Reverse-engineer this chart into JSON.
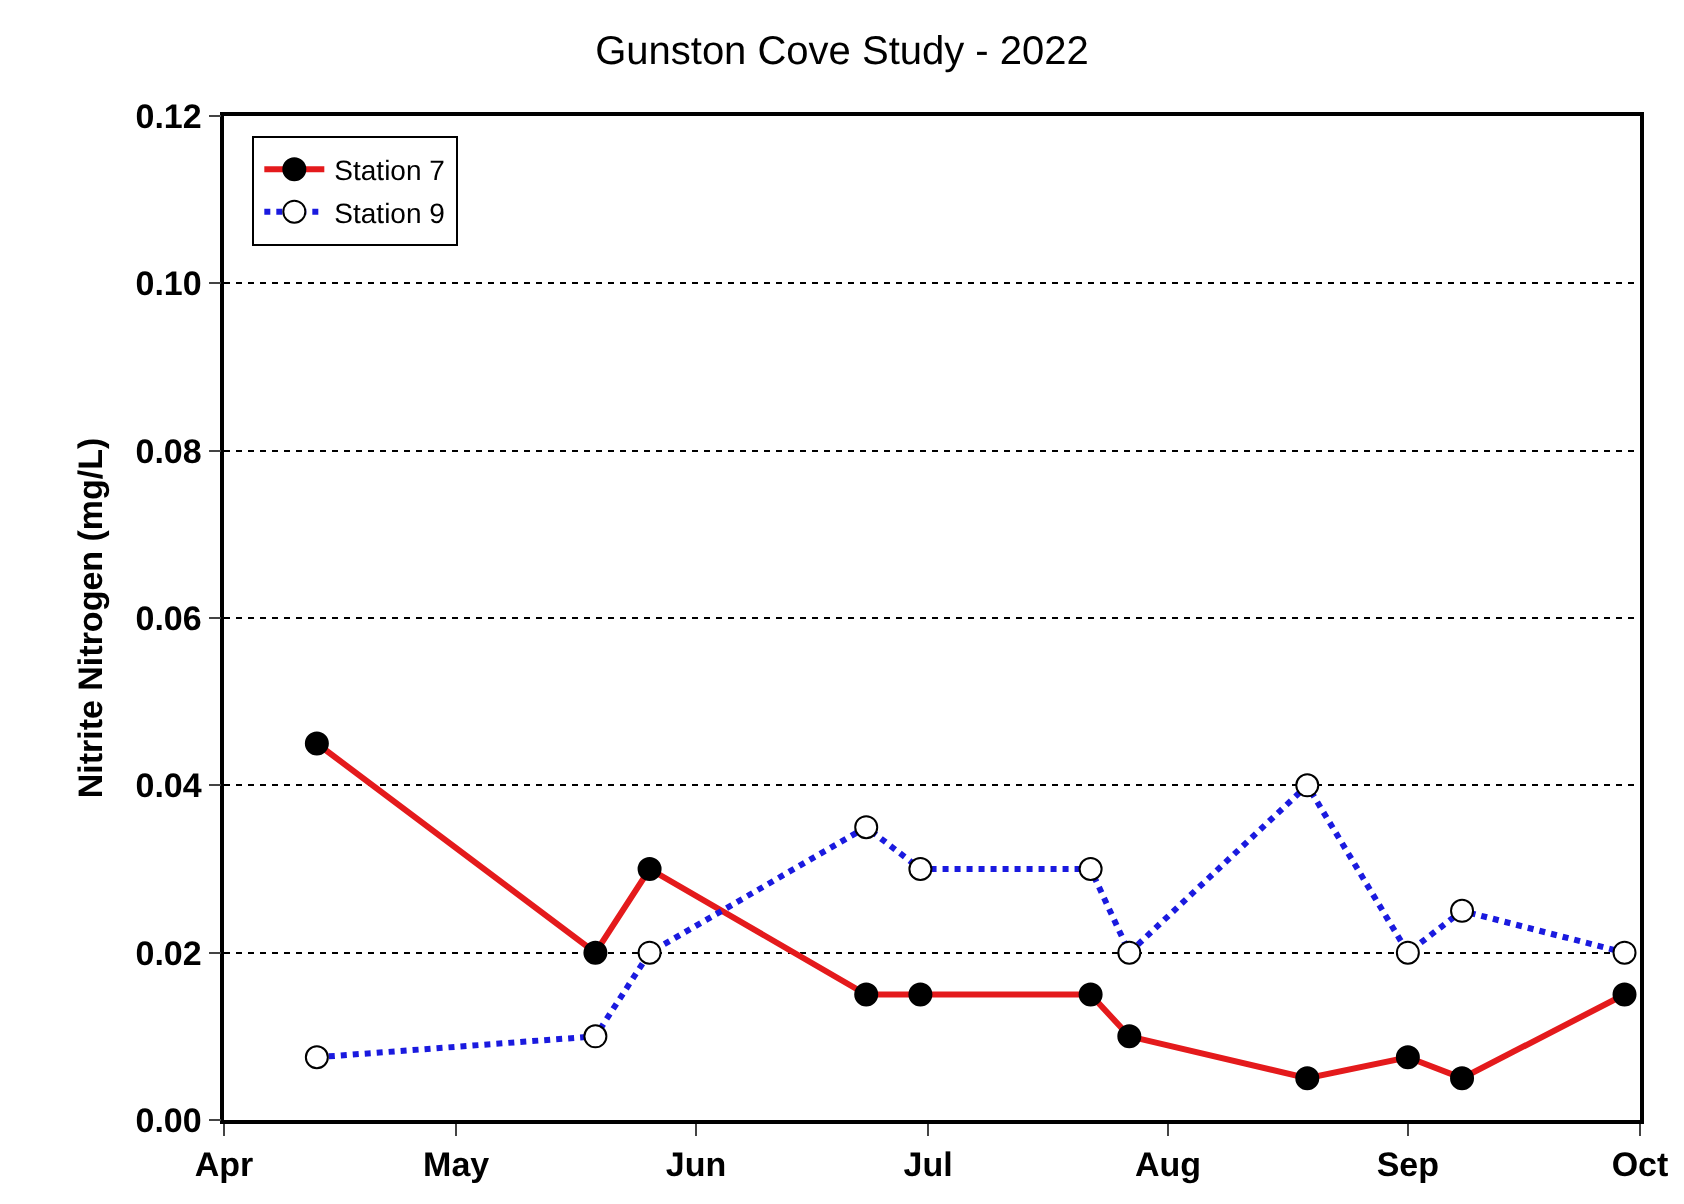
{
  "chart_data": {
    "type": "line",
    "title": "Gunston Cove Study - 2022",
    "ylabel": "Nitrite Nitrogen (mg/L)",
    "x": [
      "2022-04-13",
      "2022-05-19",
      "2022-05-26",
      "2022-06-23",
      "2022-06-30",
      "2022-07-22",
      "2022-07-27",
      "2022-08-19",
      "2022-09-01",
      "2022-09-08",
      "2022-09-29"
    ],
    "series": [
      {
        "name": "Station 7",
        "color": "#e41a1c",
        "line_style": "solid",
        "values": [
          0.045,
          0.02,
          0.03,
          0.015,
          0.015,
          0.015,
          0.01,
          0.005,
          0.0075,
          0.005,
          0.015
        ]
      },
      {
        "name": "Station 9",
        "color": "#1a1adf",
        "line_style": "dotted",
        "values": [
          0.0075,
          0.01,
          0.02,
          0.035,
          0.03,
          0.03,
          0.02,
          0.04,
          0.02,
          0.025,
          0.02
        ]
      }
    ],
    "xlim": [
      "2022-04-01",
      "2022-10-01"
    ],
    "xticks": [
      {
        "value": "2022-04-01",
        "label": "Apr"
      },
      {
        "value": "2022-05-01",
        "label": "May"
      },
      {
        "value": "2022-06-01",
        "label": "Jun"
      },
      {
        "value": "2022-07-01",
        "label": "Jul"
      },
      {
        "value": "2022-08-01",
        "label": "Aug"
      },
      {
        "value": "2022-09-01",
        "label": "Sep"
      },
      {
        "value": "2022-10-01",
        "label": "Oct"
      }
    ],
    "ylim": [
      0,
      0.12
    ],
    "yticks": [
      {
        "value": 0,
        "label": "0.00"
      },
      {
        "value": 0.02,
        "label": "0.02"
      },
      {
        "value": 0.04,
        "label": "0.04"
      },
      {
        "value": 0.06,
        "label": "0.06"
      },
      {
        "value": 0.08,
        "label": "0.08"
      },
      {
        "value": 0.1,
        "label": "0.10"
      },
      {
        "value": 0.12,
        "label": "0.12"
      }
    ],
    "grid": "y",
    "legend": "top left",
    "marker": "circle"
  }
}
